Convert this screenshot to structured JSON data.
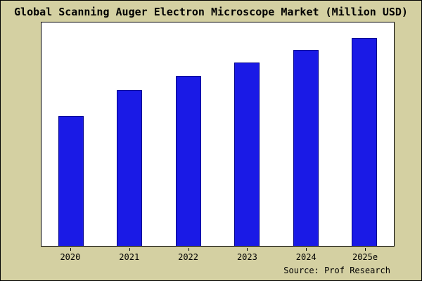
{
  "title": "Global Scanning Auger Electron Microscope Market (Million USD)",
  "source_credit": "Source: Prof Research",
  "colors": {
    "figure_background": "#d4d0a2",
    "plot_background": "#ffffff",
    "bar_fill": "#1a1ae6",
    "bar_edge": "#00008b",
    "text": "#000000"
  },
  "chart_data": {
    "type": "bar",
    "title": "Global Scanning Auger Electron Microscope Market (Million USD)",
    "categories": [
      "2020",
      "2021",
      "2022",
      "2023",
      "2024",
      "2025e"
    ],
    "values": [
      100,
      120,
      131,
      141,
      151,
      160
    ],
    "xlabel": "",
    "ylabel": "",
    "ylim": [
      0,
      173
    ],
    "y_axis_tick_labels": false,
    "grid": false,
    "legend": false
  }
}
